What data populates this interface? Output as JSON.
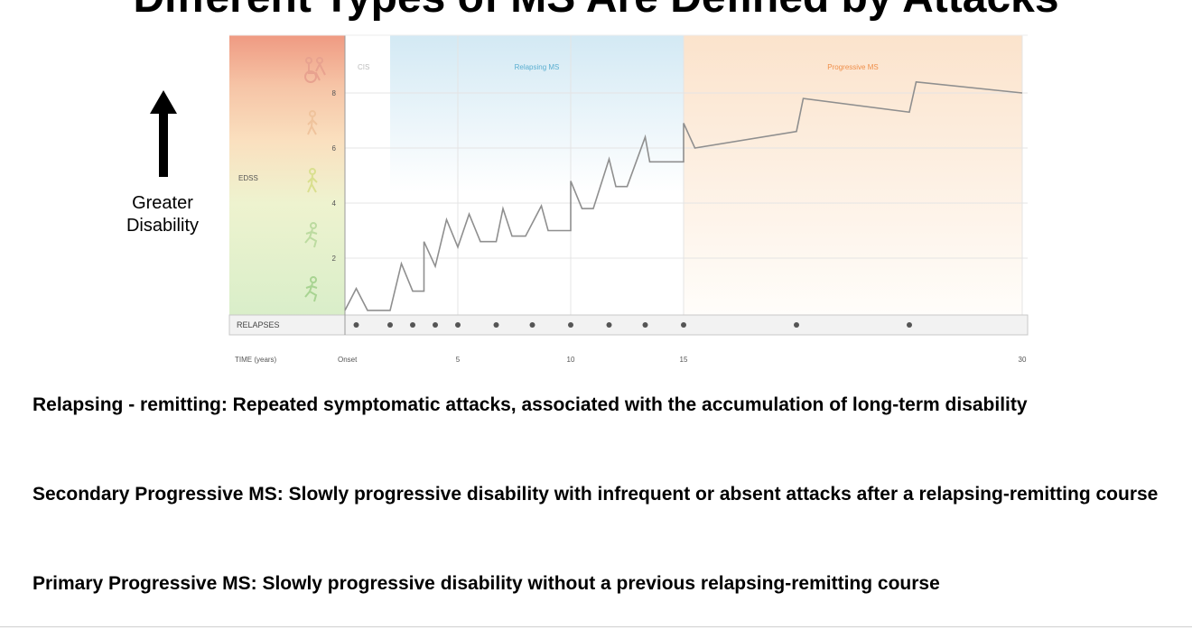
{
  "slide": {
    "title": "Different Types of MS Are Defined by Attacks",
    "disability_label": [
      "Greater",
      "Disability"
    ],
    "descriptions": [
      "Relapsing - remitting: Repeated symptomatic attacks, associated with the accumulation of long-term disability",
      "Secondary Progressive MS: Slowly progressive disability with infrequent or absent attacks after a relapsing-remitting course",
      "Primary Progressive MS: Slowly progressive disability without a previous relapsing-remitting course"
    ]
  },
  "icons": [
    "up-arrow-icon",
    "wheelchair-icon",
    "walking-person-icon",
    "running-person-icon"
  ],
  "colors": {
    "line": "#8f8f8f",
    "cis_band": "#ffffff",
    "relapsing_band": "#dcedf6",
    "progressive_band": "#fbe9d8",
    "progressive_label": "#ef8f4a",
    "relapsing_label": "#5aaed0",
    "relapse_dot": "#555555"
  },
  "chart_data": {
    "type": "line",
    "ylabel": "EDSS",
    "xlabel": "TIME (years)",
    "ylim": [
      0,
      9.5
    ],
    "xlim": [
      0,
      30
    ],
    "y_ticks": [
      "2",
      "4",
      "6",
      "8"
    ],
    "x_ticks": [
      "Onset",
      "5",
      "10",
      "15",
      "30"
    ],
    "x_tick_values": [
      0,
      5,
      10,
      15,
      30
    ],
    "grid": true,
    "phases": [
      {
        "label": "CIS",
        "x_start": 0,
        "x_end": 2
      },
      {
        "label": "Relapsing MS",
        "x_start": 2,
        "x_end": 15
      },
      {
        "label": "Progressive MS",
        "x_start": 15,
        "x_end": 30
      }
    ],
    "series": [
      {
        "x": [
          0,
          0.5,
          1,
          2,
          2.5,
          3,
          3.5,
          3.5,
          4,
          4,
          4.5,
          5,
          5,
          5.5,
          6,
          6.7,
          7,
          7.4,
          8,
          8.7,
          9,
          9.3,
          10,
          10,
          10.5,
          11,
          11.7,
          12,
          12.5,
          13.3,
          13.5,
          14,
          15,
          15,
          15.5,
          20,
          20.3,
          25,
          25.3,
          30
        ],
        "y": [
          0.1,
          0.9,
          0.1,
          0.1,
          1.8,
          0.8,
          0.8,
          2.6,
          1.7,
          1.7,
          3.4,
          2.4,
          2.4,
          3.6,
          2.6,
          2.6,
          3.8,
          2.8,
          2.8,
          3.9,
          3.0,
          3.0,
          3.0,
          4.8,
          3.8,
          3.8,
          5.6,
          4.6,
          4.6,
          6.4,
          5.5,
          5.5,
          5.5,
          6.9,
          6.0,
          6.6,
          7.8,
          7.3,
          8.4,
          8.0
        ]
      }
    ],
    "relapses_label": "RELAPSES",
    "relapses_x": [
      0.5,
      2,
      3,
      4,
      5,
      6.7,
      8.3,
      10,
      11.7,
      13.3,
      15,
      20,
      25
    ]
  }
}
